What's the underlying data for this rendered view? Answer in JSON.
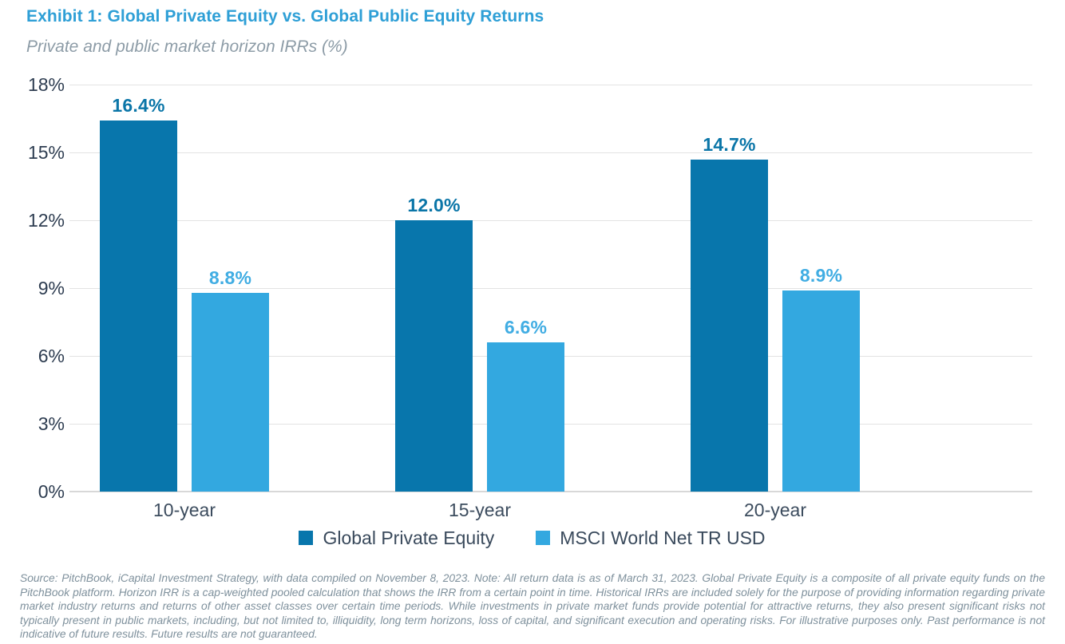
{
  "header": {
    "title": "Exhibit 1: Global Private Equity vs. Global Public Equity Returns",
    "subtitle": "Private and public market horizon IRRs (%)"
  },
  "chart_data": {
    "type": "bar",
    "title": "Exhibit 1: Global Private Equity vs. Global Public Equity Returns",
    "subtitle": "Private and public market horizon IRRs (%)",
    "categories": [
      "10-year",
      "15-year",
      "20-year"
    ],
    "series": [
      {
        "name": "Global Private Equity",
        "values": [
          16.4,
          12.0,
          14.7
        ],
        "value_labels": [
          "16.4%",
          "12.0%",
          "14.7%"
        ],
        "color": "#0876AC",
        "value_label_color": "#0B76A8"
      },
      {
        "name": "MSCI World Net TR USD",
        "values": [
          8.8,
          6.6,
          8.9
        ],
        "value_labels": [
          "8.8%",
          "6.6%",
          "8.9%"
        ],
        "color": "#33A8E0",
        "value_label_color": "#41ADE3"
      }
    ],
    "xlabel": "",
    "ylabel": "",
    "ylim": [
      0,
      18
    ],
    "yticks": [
      0,
      3,
      6,
      9,
      12,
      15,
      18
    ],
    "ytick_labels": [
      "0%",
      "3%",
      "6%",
      "9%",
      "12%",
      "15%",
      "18%"
    ],
    "grid": true,
    "legend_position": "bottom"
  },
  "colors": {
    "title": "#2E9FD6",
    "subtitle": "#8D9CA7",
    "ytick_label": "#2E3D51",
    "xtick_label": "#3C4C5E",
    "legend_label": "#3A4A5C",
    "gridline": "#E3E3E3",
    "baseline": "#D8D8D8",
    "footnote": "#7E909C"
  },
  "footnote": {
    "text": "Source: PitchBook, iCapital Investment Strategy, with data compiled on November 8, 2023. Note: All return data is as of March 31, 2023. Global Private Equity is a composite of all private equity funds on the PitchBook platform. Horizon IRR is a cap-weighted pooled calculation that shows the IRR from a certain point in time. Historical IRRs are included solely for the purpose of providing information regarding private market industry returns and returns of other asset classes over certain time periods. While investments in private market funds provide potential for attractive returns, they also present significant risks not typically present in public markets, including, but not limited to, illiquidity, long term horizons, loss of capital, and significant execution and operating risks. For illustrative purposes only. Past performance is not indicative of future results. Future results are not guaranteed."
  }
}
